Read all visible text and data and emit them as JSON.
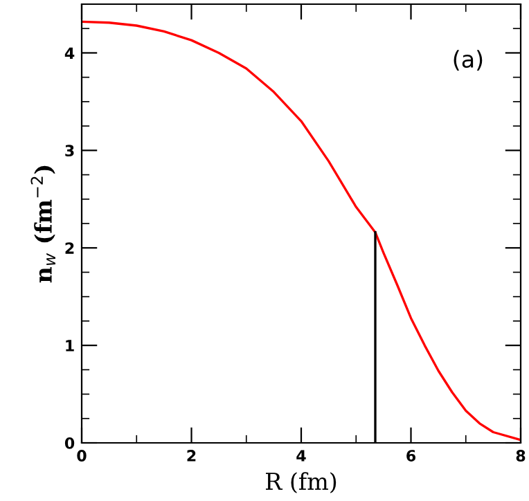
{
  "chart_data": {
    "type": "line",
    "xlabel": "R (fm)",
    "ylabel": "n$_{w}$ (fm$^{−2}$)",
    "annotations": [
      "(a)"
    ],
    "xlim": [
      0,
      8
    ],
    "ylim": [
      0,
      4.5
    ],
    "xticks": [
      0,
      2,
      4,
      6,
      8
    ],
    "yticks": [
      0,
      1,
      2,
      3,
      4
    ],
    "grid": false,
    "legend": false,
    "marker": "none",
    "line_style": "solid",
    "series": [
      {
        "color": "#ff0000",
        "x": [
          0,
          0.5,
          1,
          1.5,
          2,
          2.5,
          3,
          3.5,
          4,
          4.5,
          5,
          5.35,
          5.5,
          5.75,
          6,
          6.25,
          6.5,
          6.75,
          7,
          7.25,
          7.5,
          8
        ],
        "values": [
          4.32,
          4.31,
          4.28,
          4.22,
          4.13,
          4.0,
          3.84,
          3.6,
          3.3,
          2.89,
          2.42,
          2.16,
          1.95,
          1.62,
          1.28,
          1.0,
          0.74,
          0.52,
          0.33,
          0.2,
          0.11,
          0.03
        ]
      },
      {
        "color": "#000000",
        "x": [
          5.35,
          5.35
        ],
        "values": [
          0,
          2.16
        ]
      }
    ]
  }
}
